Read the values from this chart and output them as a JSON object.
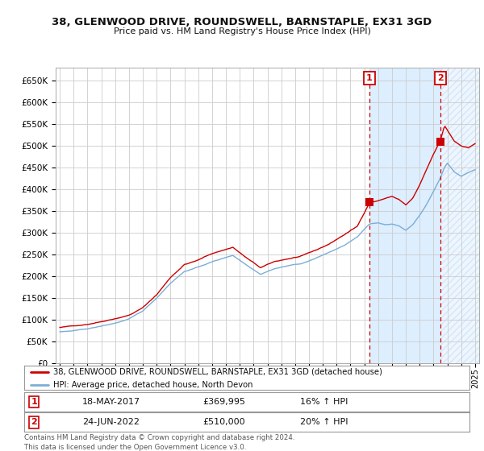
{
  "title1": "38, GLENWOOD DRIVE, ROUNDSWELL, BARNSTAPLE, EX31 3GD",
  "title2": "Price paid vs. HM Land Registry's House Price Index (HPI)",
  "ylim": [
    0,
    680000
  ],
  "yticks": [
    0,
    50000,
    100000,
    150000,
    200000,
    250000,
    300000,
    350000,
    400000,
    450000,
    500000,
    550000,
    600000,
    650000
  ],
  "xlim_start": 1994.7,
  "xlim_end": 2025.3,
  "purchase1_x": 2017.37,
  "purchase1_y": 369995,
  "purchase2_x": 2022.48,
  "purchase2_y": 510000,
  "purchase1_label": "1",
  "purchase2_label": "2",
  "purchase1_date": "18-MAY-2017",
  "purchase1_price": "£369,995",
  "purchase1_hpi": "16% ↑ HPI",
  "purchase2_date": "24-JUN-2022",
  "purchase2_price": "£510,000",
  "purchase2_hpi": "20% ↑ HPI",
  "legend_property": "38, GLENWOOD DRIVE, ROUNDSWELL, BARNSTAPLE, EX31 3GD (detached house)",
  "legend_hpi": "HPI: Average price, detached house, North Devon",
  "property_color": "#cc0000",
  "hpi_color": "#7aaed6",
  "vline_color": "#cc0000",
  "shade_color": "#ddeeff",
  "background_color": "#ffffff",
  "grid_color": "#cccccc",
  "footer1": "Contains HM Land Registry data © Crown copyright and database right 2024.",
  "footer2": "This data is licensed under the Open Government Licence v3.0."
}
